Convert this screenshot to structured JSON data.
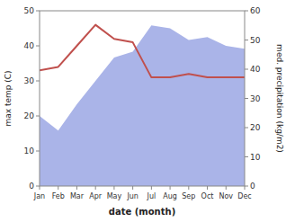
{
  "chart_data": {
    "type": "line",
    "categories": [
      "Jan",
      "Feb",
      "Mar",
      "Apr",
      "May",
      "Jun",
      "Jul",
      "Aug",
      "Sep",
      "Oct",
      "Nov",
      "Dec"
    ],
    "xlabel": "date (month)",
    "ylabel": "max temp (C)",
    "y2label": "med. precipitation (kg/m2)",
    "series": [
      {
        "type": "area",
        "axis": "y2",
        "color": "#aab4e8",
        "values": [
          24,
          19,
          28,
          36,
          44,
          46,
          55,
          54,
          50,
          51,
          48,
          47
        ]
      },
      {
        "type": "line",
        "color": "#c0504d",
        "values": [
          33,
          34,
          40,
          46,
          42,
          41,
          31,
          31,
          32,
          31,
          31,
          31
        ]
      }
    ],
    "ylim": [
      0,
      50
    ],
    "yticks": [
      0,
      10,
      20,
      30,
      40,
      50
    ],
    "y2lim": [
      0,
      60
    ],
    "y2ticks": [
      0,
      10,
      20,
      30,
      40,
      50,
      60
    ],
    "grid": false
  }
}
